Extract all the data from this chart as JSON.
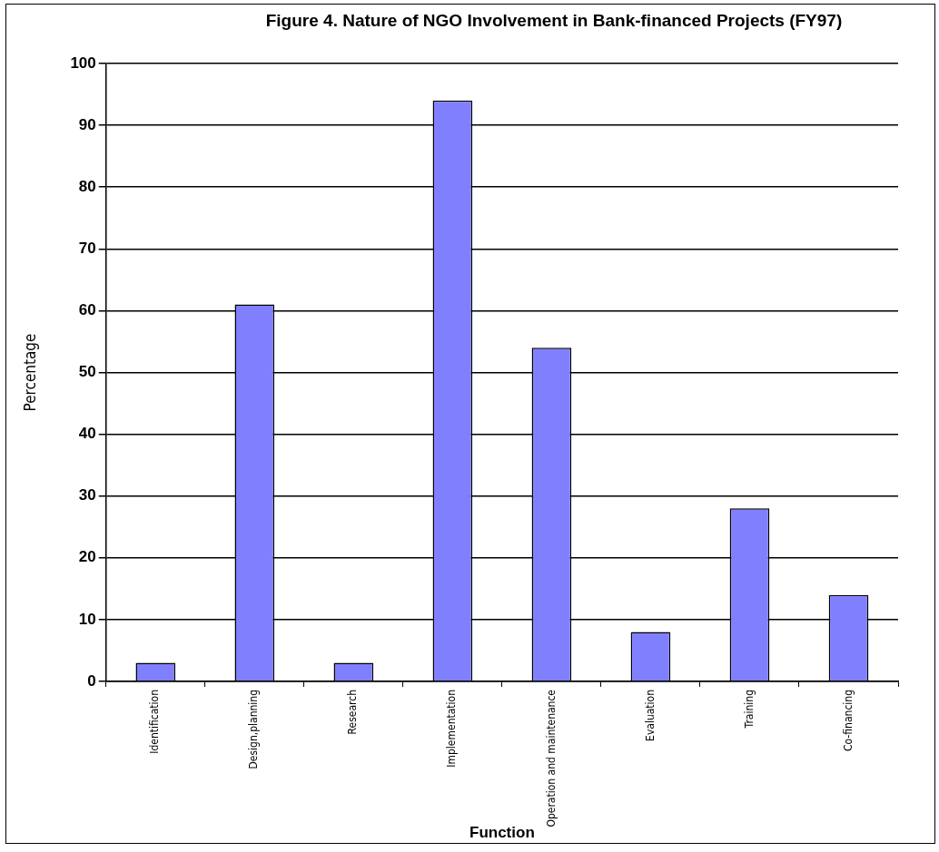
{
  "chart_data": {
    "type": "bar",
    "title": "Figure 4.  Nature of NGO Involvement in Bank-financed Projects (FY97)",
    "xlabel": "Function",
    "ylabel": "Percentage",
    "categories": [
      "Identification",
      "Design,planning",
      "Research",
      "Implementation",
      "Operation and maintenance",
      "Evaluation",
      "Training",
      "Co-financing"
    ],
    "values": [
      3,
      61,
      3,
      94,
      54,
      8,
      28,
      14
    ],
    "color": "#8080ff",
    "ylim": [
      0,
      100
    ],
    "yticks": [
      0,
      10,
      20,
      30,
      40,
      50,
      60,
      70,
      80,
      90,
      100
    ],
    "grid": "y",
    "legend": false
  }
}
